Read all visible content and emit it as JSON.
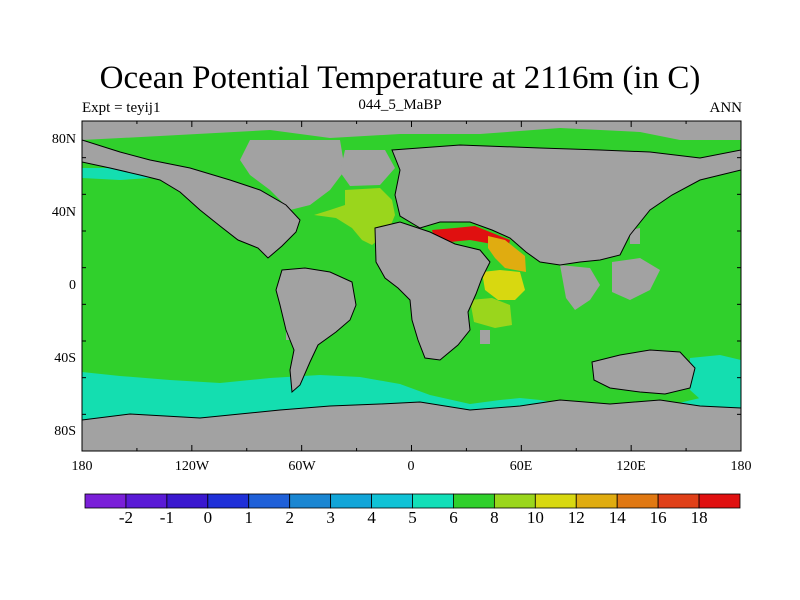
{
  "title": "Ocean Potential Temperature at 2116m (in C)",
  "left_label": "Expt = teyij1",
  "center_label": "044_5_MaBP",
  "right_label": "ANN",
  "lon_ticks": [
    "180",
    "120W",
    "60W",
    "0",
    "60E",
    "120E",
    "180"
  ],
  "lat_ticks": [
    "80N",
    "40N",
    "0",
    "40S",
    "80S"
  ],
  "colorbar": {
    "labels": [
      "-2",
      "-1",
      "0",
      "1",
      "2",
      "3",
      "4",
      "5",
      "6",
      "8",
      "10",
      "12",
      "14",
      "16",
      "18"
    ],
    "colors": [
      "#7a1fd8",
      "#5a1ad6",
      "#3a18cf",
      "#1f30d8",
      "#1f60d8",
      "#1a86d2",
      "#12a5d8",
      "#10c2d6",
      "#12dfb8",
      "#30d02c",
      "#9ad61c",
      "#d8d810",
      "#e0ac10",
      "#e07812",
      "#e04018",
      "#e01010"
    ]
  },
  "colors": {
    "land": "#a2a2a2",
    "ocean_main": "#30d02c",
    "ocean_cold": "#14deb0",
    "mediterranean": "#9ad61c",
    "red_sea": "#e01010",
    "gulf": "#e0ac10",
    "arabian_sea": "#d8d810"
  }
}
